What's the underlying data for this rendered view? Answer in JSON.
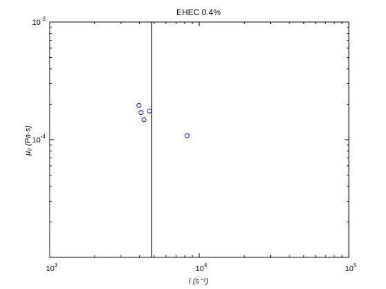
{
  "chart_data": {
    "type": "scatter",
    "title": "EHEC 0.4%",
    "xlabel": "í (s⁻¹)",
    "ylabel": "μ₀ (Pa·s)",
    "xscale": "log",
    "yscale": "log",
    "xlim": [
      1000,
      100000
    ],
    "ylim": [
      1e-05,
      0.001
    ],
    "xticks": [
      {
        "value": 1000,
        "base": "10",
        "exp": "3"
      },
      {
        "value": 10000,
        "base": "10",
        "exp": "4"
      },
      {
        "value": 100000,
        "base": "10",
        "exp": "5"
      }
    ],
    "yticks": [
      {
        "value": 0.0001,
        "base": "10",
        "exp": "-4"
      },
      {
        "value": 0.001,
        "base": "10",
        "exp": "-3"
      }
    ],
    "vertical_line_x": 4800,
    "grid": false,
    "marker_color": "#0000ff",
    "marker": "circle-open",
    "points": [
      {
        "x": 3950,
        "y": 0.000195
      },
      {
        "x": 4080,
        "y": 0.00017
      },
      {
        "x": 4280,
        "y": 0.000148
      },
      {
        "x": 4650,
        "y": 0.000175
      },
      {
        "x": 8300,
        "y": 0.000108
      }
    ]
  }
}
